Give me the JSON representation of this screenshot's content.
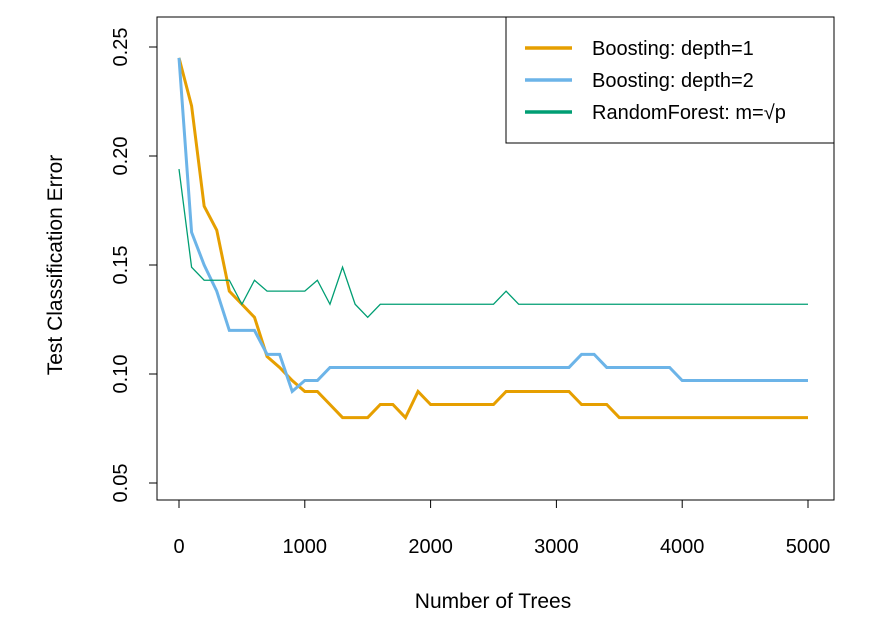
{
  "chart_data": {
    "type": "line",
    "title": "",
    "xlabel": "Number of Trees",
    "ylabel": "Test Classification Error",
    "xlim": [
      0,
      5000
    ],
    "ylim": [
      0.05,
      0.25
    ],
    "xticks": [
      0,
      1000,
      2000,
      3000,
      4000,
      5000
    ],
    "xtick_labels": [
      "0",
      "1000",
      "2000",
      "3000",
      "4000",
      "5000"
    ],
    "yticks": [
      0.05,
      0.1,
      0.15,
      0.2,
      0.25
    ],
    "ytick_labels": [
      "0.05",
      "0.10",
      "0.15",
      "0.20",
      "0.25"
    ],
    "legend_position": "top-right",
    "x": [
      0,
      100,
      200,
      300,
      400,
      500,
      600,
      700,
      800,
      900,
      1000,
      1100,
      1200,
      1300,
      1400,
      1500,
      1600,
      1700,
      1800,
      1900,
      2000,
      2100,
      2200,
      2300,
      2400,
      2500,
      2600,
      2700,
      2800,
      2900,
      3000,
      3100,
      3200,
      3300,
      3400,
      3500,
      3600,
      3700,
      3800,
      3900,
      4000,
      4100,
      4200,
      4300,
      4400,
      4500,
      4600,
      4700,
      4800,
      4900,
      5000
    ],
    "series": [
      {
        "name": "Boosting: depth=1",
        "color": "#E69F00",
        "width": 3,
        "values": [
          0.245,
          0.223,
          0.177,
          0.166,
          0.138,
          0.132,
          0.126,
          0.108,
          0.103,
          0.097,
          0.092,
          0.092,
          0.086,
          0.08,
          0.08,
          0.08,
          0.086,
          0.086,
          0.08,
          0.092,
          0.086,
          0.086,
          0.086,
          0.086,
          0.086,
          0.086,
          0.092,
          0.092,
          0.092,
          0.092,
          0.092,
          0.092,
          0.086,
          0.086,
          0.086,
          0.08,
          0.08,
          0.08,
          0.08,
          0.08,
          0.08,
          0.08,
          0.08,
          0.08,
          0.08,
          0.08,
          0.08,
          0.08,
          0.08,
          0.08,
          0.08
        ]
      },
      {
        "name": "Boosting: depth=2",
        "color": "#6CB4E8",
        "width": 3,
        "values": [
          0.245,
          0.165,
          0.15,
          0.138,
          0.12,
          0.12,
          0.12,
          0.109,
          0.109,
          0.092,
          0.097,
          0.097,
          0.103,
          0.103,
          0.103,
          0.103,
          0.103,
          0.103,
          0.103,
          0.103,
          0.103,
          0.103,
          0.103,
          0.103,
          0.103,
          0.103,
          0.103,
          0.103,
          0.103,
          0.103,
          0.103,
          0.103,
          0.109,
          0.109,
          0.103,
          0.103,
          0.103,
          0.103,
          0.103,
          0.103,
          0.097,
          0.097,
          0.097,
          0.097,
          0.097,
          0.097,
          0.097,
          0.097,
          0.097,
          0.097,
          0.097
        ]
      },
      {
        "name": "RandomForest: m=√p",
        "color": "#009E73",
        "width": 1.3,
        "values": [
          0.194,
          0.149,
          0.143,
          0.143,
          0.143,
          0.132,
          0.143,
          0.138,
          0.138,
          0.138,
          0.138,
          0.143,
          0.132,
          0.149,
          0.132,
          0.126,
          0.132,
          0.132,
          0.132,
          0.132,
          0.132,
          0.132,
          0.132,
          0.132,
          0.132,
          0.132,
          0.138,
          0.132,
          0.132,
          0.132,
          0.132,
          0.132,
          0.132,
          0.132,
          0.132,
          0.132,
          0.132,
          0.132,
          0.132,
          0.132,
          0.132,
          0.132,
          0.132,
          0.132,
          0.132,
          0.132,
          0.132,
          0.132,
          0.132,
          0.132,
          0.132
        ]
      }
    ]
  }
}
